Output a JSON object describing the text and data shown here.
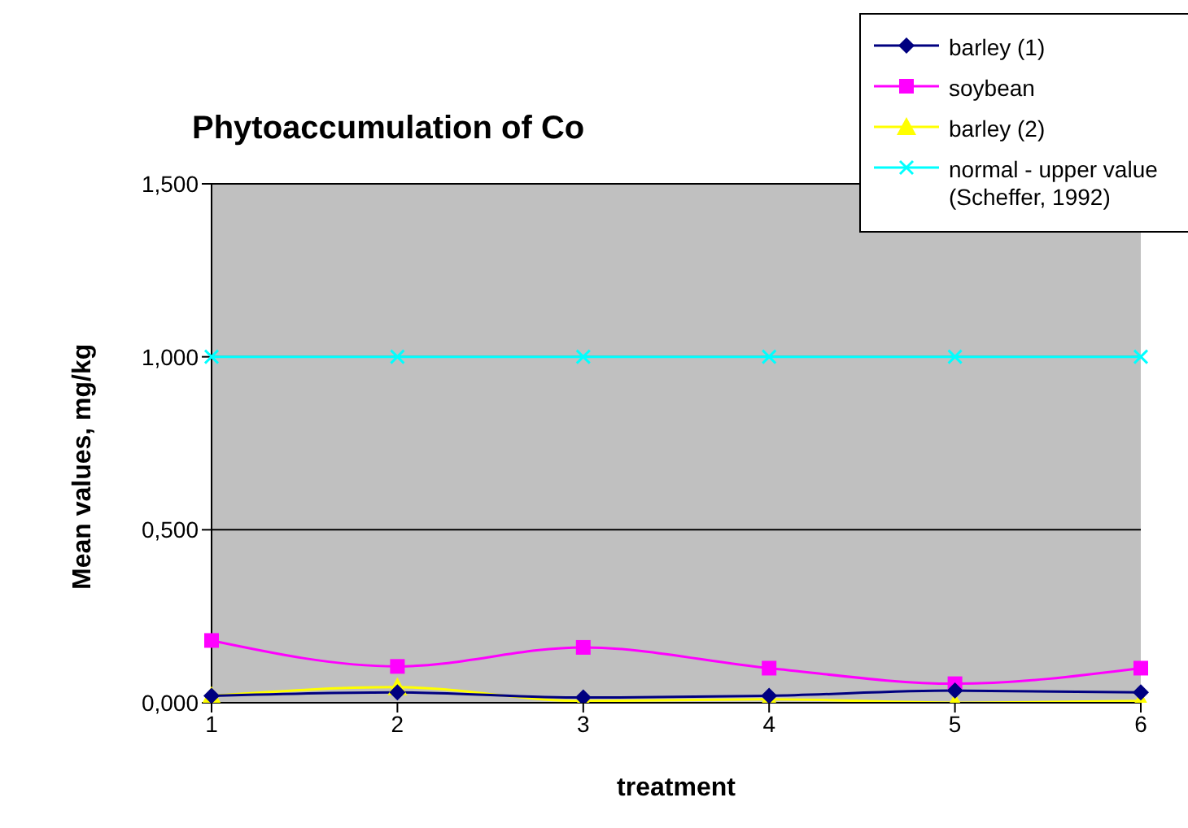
{
  "chart_data": {
    "type": "line",
    "title": "Phytoaccumulation of Co",
    "xlabel": "treatment",
    "ylabel": "Mean values, mg/kg",
    "categories": [
      "1",
      "2",
      "3",
      "4",
      "5",
      "6"
    ],
    "series": [
      {
        "name": "barley (1)",
        "color": "#000080",
        "marker": "diamond",
        "values": [
          0.02,
          0.03,
          0.015,
          0.02,
          0.035,
          0.03
        ]
      },
      {
        "name": "soybean",
        "color": "#ff00ff",
        "marker": "square",
        "values": [
          0.18,
          0.105,
          0.16,
          0.1,
          0.055,
          0.1
        ]
      },
      {
        "name": "barley (2)",
        "color": "#ffff00",
        "marker": "triangle",
        "values": [
          0.02,
          0.045,
          0.005,
          0.01,
          0,
          0.005
        ]
      },
      {
        "name": "normal - upper value (Scheffer, 1992)",
        "color": "#00ffff",
        "marker": "cross",
        "values": [
          1,
          1,
          1,
          1,
          1,
          1
        ]
      }
    ],
    "ylim": [
      0,
      1.5
    ],
    "yticks": [
      {
        "value": 0,
        "label": "0,000"
      },
      {
        "value": 0.5,
        "label": "0,500"
      },
      {
        "value": 1,
        "label": "1,000"
      },
      {
        "value": 1.5,
        "label": "1,500"
      }
    ],
    "grid": "y",
    "legend": "top right"
  }
}
